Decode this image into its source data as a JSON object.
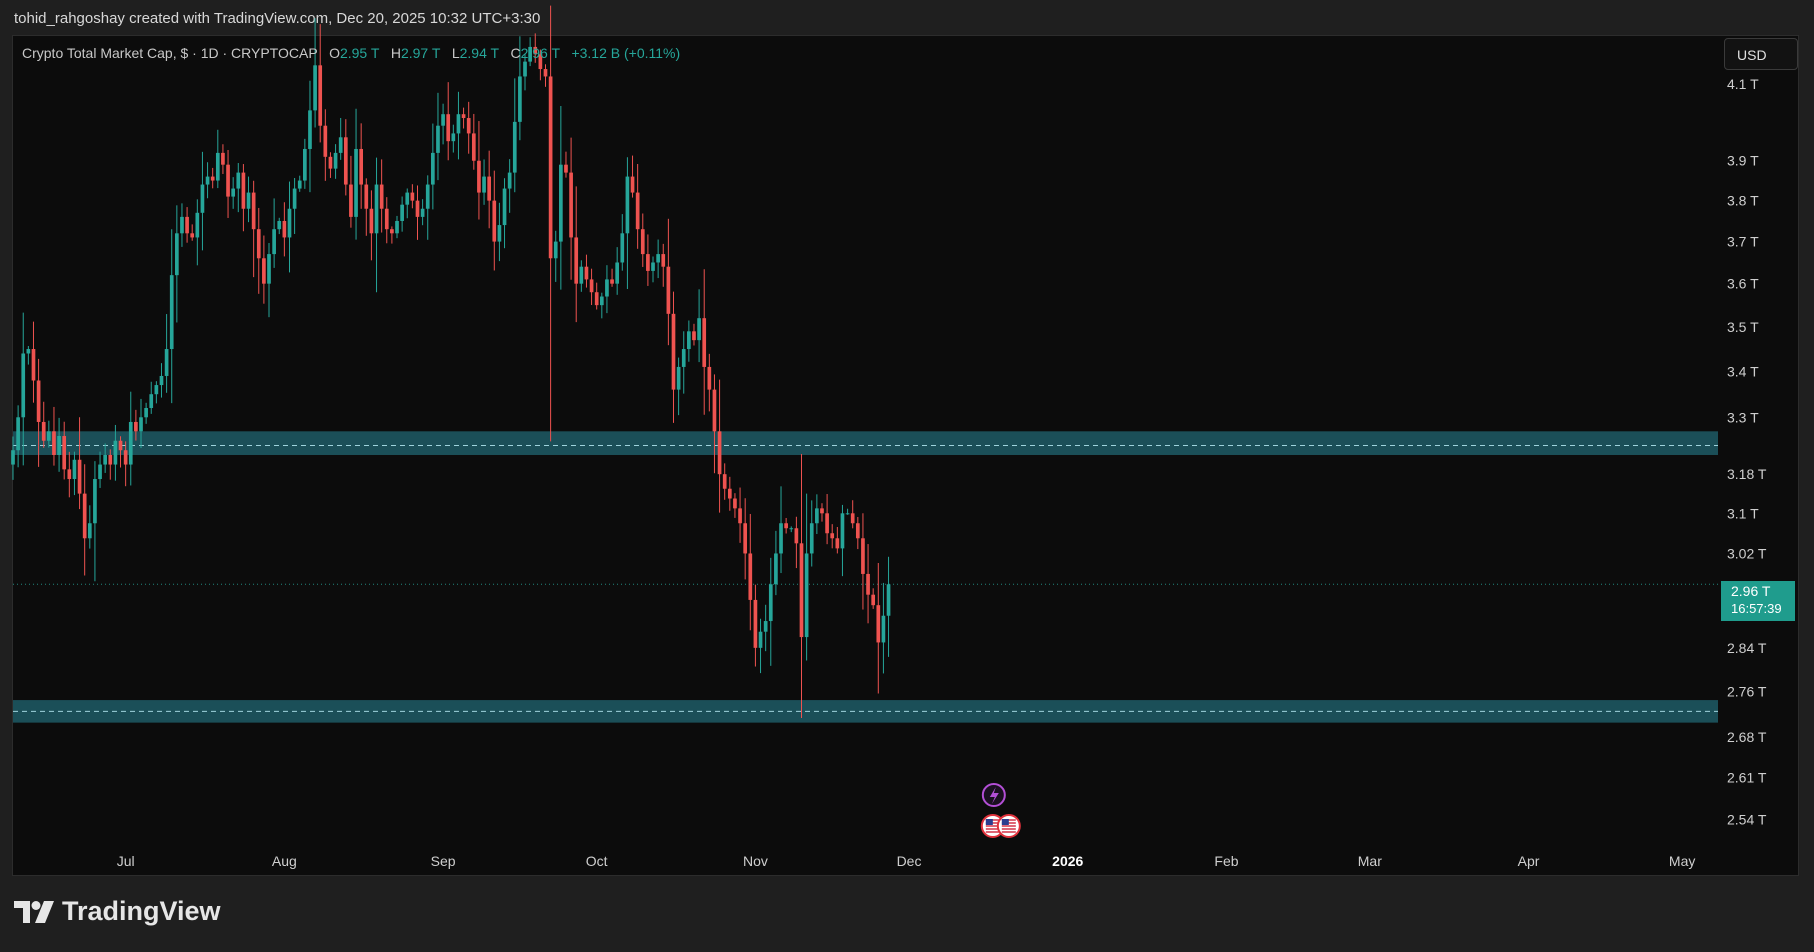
{
  "attribution": "tohid_rahgoshay created with TradingView.com, Dec 20, 2025 10:32 UTC+3:30",
  "header": {
    "symbol": "Crypto Total Market Cap, $ · 1D · CRYPTOCAP",
    "o_label": "O",
    "o_value": "2.95 T",
    "h_label": "H",
    "h_value": "2.97 T",
    "l_label": "L",
    "l_value": "2.94 T",
    "c_label": "C",
    "c_value": "2.96 T",
    "change": "+3.12 B (+0.11%)"
  },
  "currency_button": "USD",
  "price_badge": {
    "price": "2.96 T",
    "countdown": "16:57:39"
  },
  "brand": "TradingView",
  "colors": {
    "up": "#26a69a",
    "down": "#ef5350",
    "zone": "#1f5c66",
    "zone_line": "#9fd3dc",
    "badge": "#1f9c8d",
    "background": "#0c0c0c"
  },
  "chart_data": {
    "type": "candlestick",
    "title": "Crypto Total Market Cap, $ · 1D · CRYPTOCAP",
    "scale": "log",
    "ylim": [
      2.48,
      4.23
    ],
    "y_ticks": [
      {
        "value": 4.1,
        "label": "4.1 T"
      },
      {
        "value": 3.9,
        "label": "3.9 T"
      },
      {
        "value": 3.8,
        "label": "3.8 T"
      },
      {
        "value": 3.7,
        "label": "3.7 T"
      },
      {
        "value": 3.6,
        "label": "3.6 T"
      },
      {
        "value": 3.5,
        "label": "3.5 T"
      },
      {
        "value": 3.4,
        "label": "3.4 T"
      },
      {
        "value": 3.3,
        "label": "3.3 T"
      },
      {
        "value": 3.18,
        "label": "3.18 T"
      },
      {
        "value": 3.1,
        "label": "3.1 T"
      },
      {
        "value": 3.02,
        "label": "3.02 T"
      },
      {
        "value": 2.84,
        "label": "2.84 T"
      },
      {
        "value": 2.76,
        "label": "2.76 T"
      },
      {
        "value": 2.68,
        "label": "2.68 T"
      },
      {
        "value": 2.61,
        "label": "2.61 T"
      },
      {
        "value": 2.54,
        "label": "2.54 T"
      }
    ],
    "x_ticks": [
      {
        "date": "2025-07-01",
        "label": "Jul"
      },
      {
        "date": "2025-08-01",
        "label": "Aug"
      },
      {
        "date": "2025-09-01",
        "label": "Sep"
      },
      {
        "date": "2025-10-01",
        "label": "Oct"
      },
      {
        "date": "2025-11-01",
        "label": "Nov"
      },
      {
        "date": "2025-12-01",
        "label": "Dec"
      },
      {
        "date": "2026-01-01",
        "label": "2026",
        "bold": true
      },
      {
        "date": "2026-02-01",
        "label": "Feb"
      },
      {
        "date": "2026-03-01",
        "label": "Mar"
      },
      {
        "date": "2026-04-01",
        "label": "Apr"
      },
      {
        "date": "2026-05-01",
        "label": "May"
      }
    ],
    "x_range": [
      "2025-06-09",
      "2026-05-08"
    ],
    "series": {
      "x_start": "2025-06-09",
      "close": [
        3.23,
        3.3,
        3.44,
        3.45,
        3.38,
        3.29,
        3.25,
        3.27,
        3.22,
        3.26,
        3.19,
        3.17,
        3.21,
        3.14,
        3.05,
        3.08,
        3.17,
        3.2,
        3.22,
        3.2,
        3.25,
        3.23,
        3.2,
        3.29,
        3.27,
        3.3,
        3.32,
        3.35,
        3.37,
        3.39,
        3.45,
        3.62,
        3.72,
        3.76,
        3.72,
        3.71,
        3.77,
        3.84,
        3.86,
        3.85,
        3.92,
        3.89,
        3.81,
        3.83,
        3.87,
        3.78,
        3.82,
        3.73,
        3.66,
        3.6,
        3.67,
        3.73,
        3.75,
        3.71,
        3.78,
        3.83,
        3.85,
        3.93,
        4.03,
        4.15,
        3.99,
        3.91,
        3.88,
        3.92,
        3.96,
        3.84,
        3.76,
        3.93,
        3.84,
        3.78,
        3.72,
        3.84,
        3.78,
        3.73,
        3.72,
        3.75,
        3.79,
        3.82,
        3.8,
        3.76,
        3.78,
        3.84,
        3.92,
        3.99,
        4.02,
        3.95,
        3.97,
        4.02,
        4.01,
        3.97,
        3.9,
        3.82,
        3.86,
        3.8,
        3.7,
        3.74,
        3.83,
        3.87,
        4.0,
        4.12,
        4.16,
        4.2,
        4.18,
        4.14,
        4.12,
        3.66,
        3.7,
        3.89,
        3.87,
        3.71,
        3.6,
        3.64,
        3.61,
        3.58,
        3.55,
        3.57,
        3.61,
        3.6,
        3.65,
        3.72,
        3.86,
        3.82,
        3.73,
        3.67,
        3.63,
        3.65,
        3.67,
        3.64,
        3.53,
        3.36,
        3.41,
        3.45,
        3.49,
        3.47,
        3.52,
        3.41,
        3.36,
        3.27,
        3.18,
        3.15,
        3.13,
        3.11,
        3.08,
        3.02,
        2.93,
        2.84,
        2.87,
        2.89,
        2.96,
        3.02,
        3.08,
        3.07,
        3.07,
        3.04,
        2.86,
        3.02,
        3.08,
        3.11,
        3.1,
        3.06,
        3.05,
        3.03,
        3.1,
        3.1,
        3.08,
        3.05,
        2.98,
        2.94,
        2.92,
        2.85,
        2.9,
        2.96
      ],
      "annotations": [
        "price line at 2.96 T",
        "countdown 16:57:39"
      ]
    },
    "zones": [
      {
        "from": 3.22,
        "to": 3.27,
        "line": 3.24
      },
      {
        "from": 2.705,
        "to": 2.745,
        "line": 2.725
      }
    ],
    "last_price": 2.96,
    "event_markers": [
      "lightning-icon",
      "us-flag-icon",
      "us-flag-icon"
    ]
  }
}
